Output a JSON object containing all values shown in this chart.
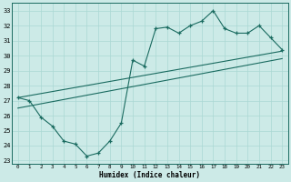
{
  "xlabel": "Humidex (Indice chaleur)",
  "bg_color": "#cceae7",
  "line_color": "#1a6b60",
  "grid_color": "#aad8d3",
  "xlim": [
    -0.5,
    23.5
  ],
  "ylim": [
    22.8,
    33.5
  ],
  "xticks": [
    0,
    1,
    2,
    3,
    4,
    5,
    6,
    7,
    8,
    9,
    10,
    11,
    12,
    13,
    14,
    15,
    16,
    17,
    18,
    19,
    20,
    21,
    22,
    23
  ],
  "yticks": [
    23,
    24,
    25,
    26,
    27,
    28,
    29,
    30,
    31,
    32,
    33
  ],
  "line1_x": [
    0,
    1,
    2,
    3,
    4,
    5,
    6,
    7,
    8,
    9,
    10,
    11,
    12,
    13,
    14,
    15,
    16,
    17,
    18,
    19,
    20,
    21,
    22,
    23
  ],
  "line1_y": [
    27.2,
    27.0,
    25.9,
    25.3,
    24.3,
    24.1,
    23.3,
    23.5,
    24.3,
    25.5,
    29.7,
    29.3,
    31.8,
    31.9,
    31.5,
    32.0,
    32.3,
    33.0,
    31.8,
    31.5,
    31.5,
    32.0,
    31.2,
    30.4
  ],
  "line2_x": [
    0,
    23
  ],
  "line2_y": [
    27.2,
    30.3
  ],
  "line3_x": [
    0,
    23
  ],
  "line3_y": [
    26.5,
    29.8
  ]
}
